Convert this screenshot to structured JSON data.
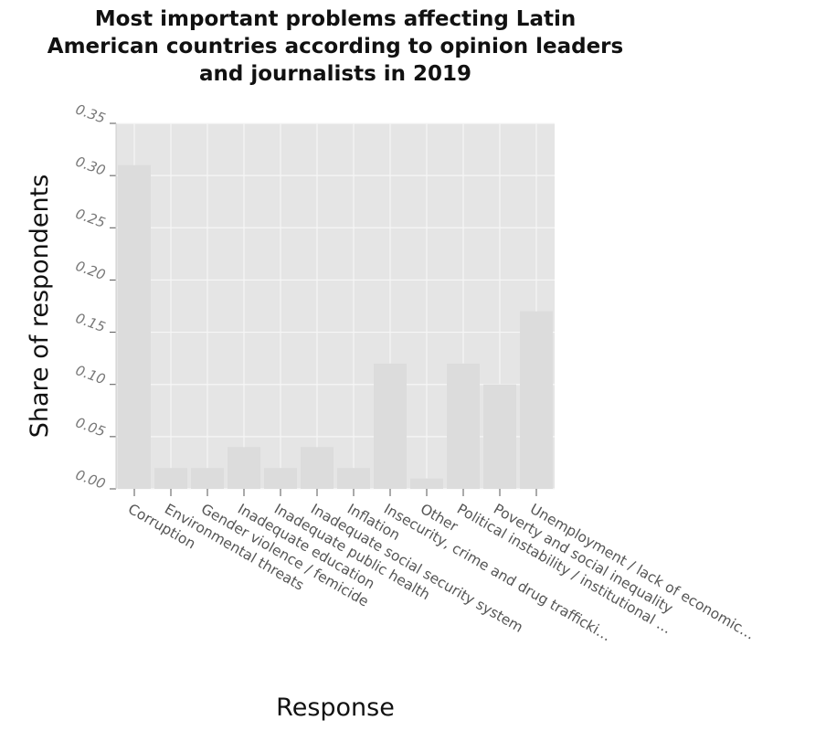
{
  "chart_data": {
    "type": "bar",
    "title_lines": [
      "Most important problems affecting Latin",
      "American countries according to opinion leaders",
      "and journalists in 2019"
    ],
    "xlabel": "Response",
    "ylabel": "Share of respondents",
    "ylim": [
      0,
      0.35
    ],
    "yticks": [
      "0.00",
      "0.05",
      "0.10",
      "0.15",
      "0.20",
      "0.25",
      "0.30",
      "0.35"
    ],
    "grid": true,
    "categories": [
      "Corruption",
      "Environmental threats",
      "Gender violence / femicide",
      "Inadequate education",
      "Inadequate public health",
      "Inadequate social security system",
      "Inflation",
      "Insecurity, crime and drug trafficki…",
      "Other",
      "Political instability / institutional …",
      "Poverty and social inequality",
      "Unemployment / lack of economic…"
    ],
    "values": [
      0.31,
      0.02,
      0.02,
      0.04,
      0.02,
      0.04,
      0.02,
      0.12,
      0.01,
      0.12,
      0.1,
      0.17
    ],
    "colors": {
      "bar": "#dcdcdc",
      "plot_bg": "#e5e5e5",
      "grid": "#f6f6f6"
    }
  }
}
